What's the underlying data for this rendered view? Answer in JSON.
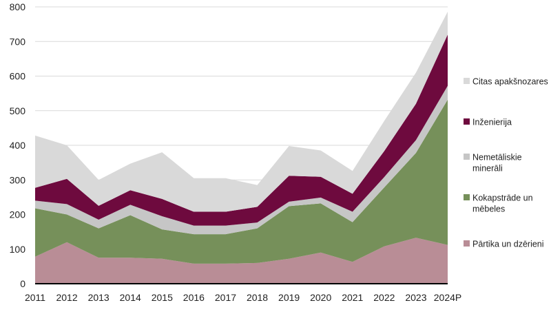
{
  "chart_data": {
    "type": "area",
    "stacked": true,
    "categories": [
      "2011",
      "2012",
      "2013",
      "2014",
      "2015",
      "2016",
      "2017",
      "2018",
      "2019",
      "2020",
      "2021",
      "2022",
      "2023",
      "2024P"
    ],
    "ylim": [
      0,
      800
    ],
    "yticks": [
      0,
      100,
      200,
      300,
      400,
      500,
      600,
      700,
      800
    ],
    "grid": true,
    "legend_position": "right",
    "series": [
      {
        "name": "Pārtika un dzērieni",
        "color": "#b98d96",
        "values": [
          78,
          120,
          75,
          75,
          72,
          58,
          58,
          60,
          72,
          90,
          63,
          108,
          133,
          112
        ]
      },
      {
        "name": "Kokapstrāde un mēbeles",
        "color": "#76905a",
        "values": [
          140,
          80,
          85,
          123,
          85,
          85,
          85,
          100,
          152,
          142,
          115,
          170,
          245,
          420
        ]
      },
      {
        "name": "Nemetāliskie minerāli",
        "color": "#c6c6c6",
        "values": [
          22,
          30,
          25,
          30,
          38,
          25,
          25,
          17,
          13,
          17,
          30,
          30,
          37,
          40
        ]
      },
      {
        "name": "Inženierija",
        "color": "#6e0a3e",
        "values": [
          37,
          73,
          40,
          42,
          50,
          40,
          40,
          45,
          75,
          60,
          52,
          75,
          105,
          148
        ]
      },
      {
        "name": "Citas apakšnozares",
        "color": "#d9d9d9",
        "values": [
          151,
          97,
          75,
          77,
          135,
          97,
          97,
          63,
          86,
          76,
          66,
          87,
          90,
          66
        ]
      }
    ],
    "legend_labels": [
      {
        "series": 4,
        "lines": [
          "Citas apakšnozares"
        ]
      },
      {
        "series": 3,
        "lines": [
          "Inženierija"
        ]
      },
      {
        "series": 2,
        "lines": [
          "Nemetāliskie",
          "minerāli"
        ]
      },
      {
        "series": 1,
        "lines": [
          "Kokapstrāde un",
          "mēbeles"
        ]
      },
      {
        "series": 0,
        "lines": [
          "Pārtika un dzērieni"
        ]
      }
    ]
  }
}
